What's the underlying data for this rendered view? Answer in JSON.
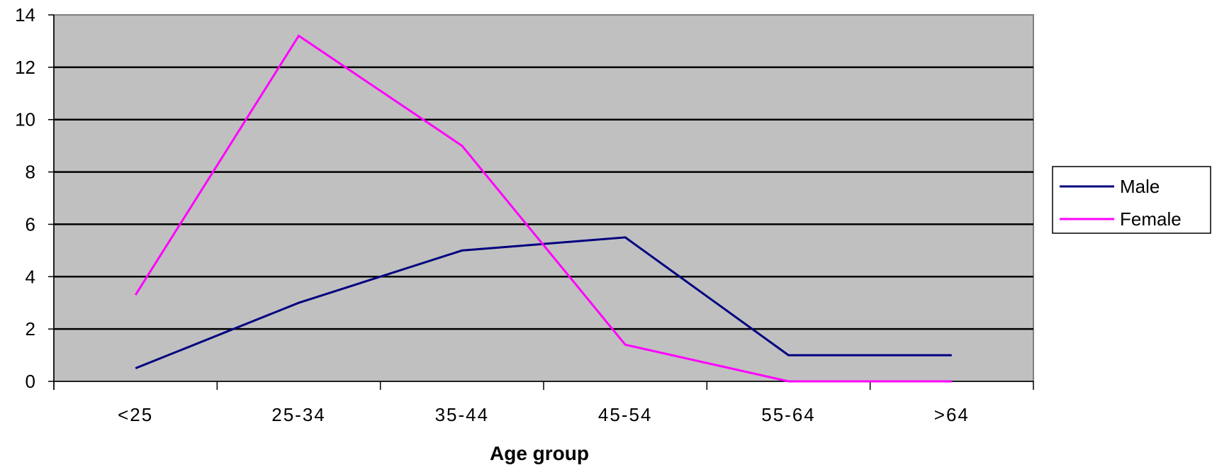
{
  "chart_data": {
    "type": "line",
    "title": "",
    "xlabel": "Age group",
    "ylabel": "",
    "categories": [
      "<25",
      "25-34",
      "35-44",
      "45-54",
      "55-64",
      ">64"
    ],
    "ylim": [
      0,
      14
    ],
    "yticks": [
      0,
      2,
      4,
      6,
      8,
      10,
      12,
      14
    ],
    "grid": true,
    "legend_position": "right",
    "plot_background": "#c0c0c0",
    "series": [
      {
        "name": "Male",
        "color": "#000080",
        "values": [
          0.5,
          3,
          5,
          5.5,
          1,
          1
        ]
      },
      {
        "name": "Female",
        "color": "#ff00ff",
        "values": [
          3.3,
          13.2,
          9,
          1.4,
          0,
          0
        ]
      }
    ]
  }
}
